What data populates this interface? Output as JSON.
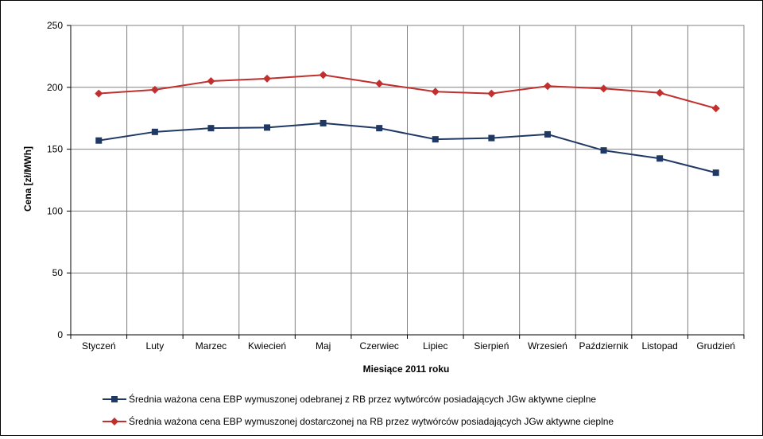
{
  "chart_data": {
    "type": "line",
    "title": "",
    "xlabel": "Miesiące 2011  roku",
    "ylabel": "Cena [zł/MWh]",
    "ylim": [
      0,
      250
    ],
    "yticks": [
      0,
      50,
      100,
      150,
      200,
      250
    ],
    "grid": true,
    "legend_position": "bottom",
    "categories": [
      "Styczeń",
      "Luty",
      "Marzec",
      "Kwiecień",
      "Maj",
      "Czerwiec",
      "Lipiec",
      "Sierpień",
      "Wrzesień",
      "Październik",
      "Listopad",
      "Grudzień"
    ],
    "series": [
      {
        "name": "Średnia ważona cena EBP wymuszonej odebranej z RB przez wytwórców posiadających JGw aktywne cieplne",
        "color": "#1f3864",
        "marker": "square",
        "values": [
          157,
          164,
          167,
          167.5,
          171,
          167,
          158,
          159,
          162,
          149,
          142.5,
          131
        ]
      },
      {
        "name": "Średnia ważona cena EBP wymuszonej dostarczonej na RB przez wytwórców posiadających JGw aktywne cieplne",
        "color": "#c0302e",
        "marker": "diamond",
        "values": [
          195,
          198,
          205,
          207,
          210,
          203,
          196.5,
          195,
          201,
          199,
          195.5,
          183
        ]
      }
    ]
  }
}
